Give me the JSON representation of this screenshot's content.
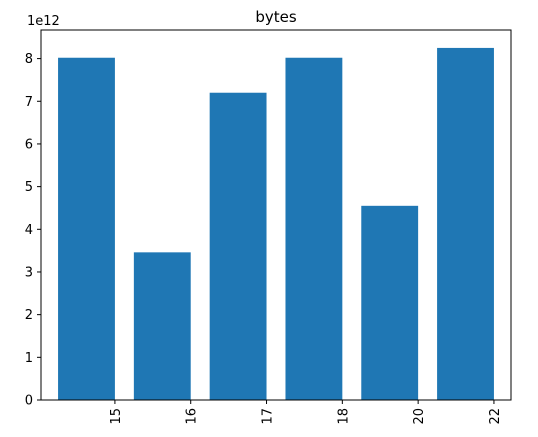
{
  "chart_data": {
    "type": "bar",
    "title": "bytes",
    "xlabel": "",
    "ylabel": "",
    "y_scale_label": "1e12",
    "categories": [
      "15",
      "16",
      "17",
      "18",
      "20",
      "22"
    ],
    "values": [
      8020000000000.0,
      3460000000000.0,
      7200000000000.0,
      8020000000000.0,
      4550000000000.0,
      8250000000000.0
    ],
    "ylim": [
      0,
      8670000000000.0
    ],
    "y_ticks": [
      0,
      1000000000000.0,
      2000000000000.0,
      3000000000000.0,
      4000000000000.0,
      5000000000000.0,
      6000000000000.0,
      7000000000000.0,
      8000000000000.0
    ],
    "y_tick_labels": [
      "0",
      "1",
      "2",
      "3",
      "4",
      "5",
      "6",
      "7",
      "8"
    ],
    "x_tick_rotation": "vertical",
    "grid": false,
    "legend": "none",
    "bar_color": "#1f77b4"
  }
}
